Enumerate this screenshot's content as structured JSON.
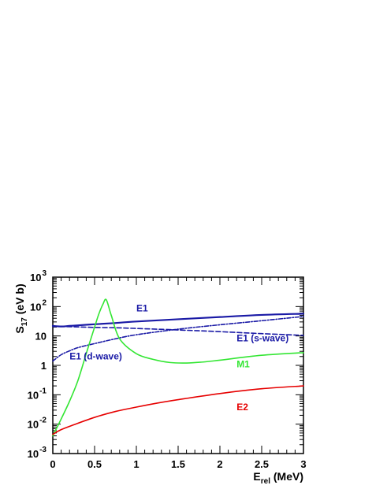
{
  "chart_data": {
    "type": "line",
    "ylabel_main": "S",
    "ylabel_sub": "17",
    "ylabel_rest": " (eV b)",
    "xlabel_main": "E",
    "xlabel_sub": "rel",
    "xlabel_rest": " (MeV)",
    "xlim": [
      0,
      3
    ],
    "ylim": [
      0.001,
      1000
    ],
    "yscale": "log",
    "grid": false,
    "x_ticks": [
      {
        "value": 0,
        "label": "0"
      },
      {
        "value": 0.5,
        "label": "0.5"
      },
      {
        "value": 1,
        "label": "1"
      },
      {
        "value": 1.5,
        "label": "1.5"
      },
      {
        "value": 2,
        "label": "2"
      },
      {
        "value": 2.5,
        "label": "2.5"
      },
      {
        "value": 3,
        "label": "3"
      }
    ],
    "y_ticks": [
      {
        "value": 0.001,
        "base": "10",
        "exp": "-3"
      },
      {
        "value": 0.01,
        "base": "10",
        "exp": "-2"
      },
      {
        "value": 0.1,
        "base": "10",
        "exp": "-1"
      },
      {
        "value": 1,
        "base": "1",
        "exp": ""
      },
      {
        "value": 10,
        "base": "10",
        "exp": ""
      },
      {
        "value": 100,
        "base": "10",
        "exp": "2"
      },
      {
        "value": 1000,
        "base": "10",
        "exp": "3"
      }
    ],
    "series": [
      {
        "name": "E1",
        "color": "#1a1aa6",
        "style": "solid",
        "x": [
          0,
          0.1,
          0.2,
          0.3,
          0.5,
          0.7,
          1.0,
          1.5,
          2.0,
          2.5,
          3.0
        ],
        "y": [
          22,
          21,
          22,
          23,
          25,
          27,
          31,
          37,
          44,
          52,
          57
        ]
      },
      {
        "name": "E1 (s-wave)",
        "color": "#1a1aa6",
        "style": "dashed",
        "x": [
          0,
          0.25,
          0.5,
          0.75,
          1.0,
          1.5,
          2.0,
          2.5,
          3.0
        ],
        "y": [
          21,
          20.5,
          19.5,
          19,
          18,
          16,
          14,
          12,
          10.5
        ]
      },
      {
        "name": "E1 (d-wave)",
        "color": "#1a1aa6",
        "style": "dashdot",
        "x": [
          0,
          0.1,
          0.2,
          0.3,
          0.5,
          0.75,
          1.0,
          1.5,
          2.0,
          2.5,
          3.0
        ],
        "y": [
          1.4,
          2.3,
          3.1,
          4.0,
          5.5,
          8,
          11,
          17,
          24,
          33,
          46
        ]
      },
      {
        "name": "M1",
        "color": "#33e633",
        "style": "solid",
        "x": [
          0,
          0.1,
          0.2,
          0.3,
          0.4,
          0.5,
          0.55,
          0.6,
          0.64,
          0.7,
          0.8,
          1.0,
          1.2,
          1.4,
          1.6,
          1.8,
          2.0,
          2.5,
          3.0
        ],
        "y": [
          0.004,
          0.015,
          0.06,
          0.3,
          2.5,
          20,
          55,
          120,
          170,
          50,
          8,
          2.5,
          1.6,
          1.25,
          1.2,
          1.3,
          1.5,
          2.2,
          2.7
        ]
      },
      {
        "name": "E2",
        "color": "#e60000",
        "style": "solid",
        "x": [
          0,
          0.1,
          0.25,
          0.5,
          0.75,
          1.0,
          1.25,
          1.5,
          2.0,
          2.5,
          3.0
        ],
        "y": [
          0.0045,
          0.0065,
          0.0095,
          0.017,
          0.027,
          0.038,
          0.052,
          0.068,
          0.11,
          0.16,
          0.2
        ]
      }
    ],
    "annotations": [
      {
        "text": "E1",
        "x": 1.0,
        "y": 68,
        "color": "#1a1aa6"
      },
      {
        "text": "E1 (s-wave)",
        "x": 2.2,
        "y": 6.5,
        "color": "#1a1aa6"
      },
      {
        "text": "E1 (d-wave)",
        "x": 0.2,
        "y": 1.6,
        "color": "#1a1aa6"
      },
      {
        "text": "M1",
        "x": 2.2,
        "y": 0.85,
        "color": "#33e633"
      },
      {
        "text": "E2",
        "x": 2.2,
        "y": 0.03,
        "color": "#e60000"
      }
    ]
  }
}
